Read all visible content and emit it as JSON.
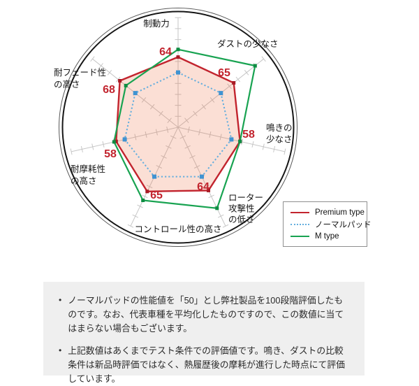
{
  "chart_data": {
    "type": "radar",
    "title": "",
    "categories": [
      "制動力",
      "ダストの少なさ",
      "鳴きの少なさ",
      "ローター攻撃性の低さ",
      "コントロール性の高さ",
      "耐摩耗性の高さ",
      "耐フェード性の高さ"
    ],
    "label_lines": [
      [
        "制動力"
      ],
      [
        "ダストの少なさ"
      ],
      [
        "鳴きの",
        "少なさ"
      ],
      [
        "ローター",
        "攻撃性",
        "の低さ"
      ],
      [
        "コントロール性の高さ"
      ],
      [
        "耐摩耗性",
        "の高さ"
      ],
      [
        "耐フェード性",
        "の高さ"
      ]
    ],
    "scale": {
      "min": 0,
      "max": 100,
      "tick_step": 10
    },
    "series": [
      {
        "name": "Premium type",
        "values": [
          64,
          65,
          58,
          64,
          65,
          58,
          68
        ],
        "color": "#c2242e",
        "marker_color": "#a81a24",
        "style": "solid",
        "fill": "rgba(235,108,66,0.22)",
        "value_labels_shown": true
      },
      {
        "name": "ノーマルパッド",
        "values": [
          50,
          50,
          50,
          50,
          50,
          50,
          50
        ],
        "color": "#64aede",
        "marker_color": "#3f93d2",
        "style": "dotted",
        "fill": null,
        "value_labels_shown": false
      },
      {
        "name": "M type",
        "values": [
          71,
          90,
          58,
          82,
          74,
          60,
          61
        ],
        "color": "#18a351",
        "marker_color": "#0d8c42",
        "style": "solid",
        "fill": null,
        "value_labels_shown": false
      }
    ],
    "value_label_color": "#c2242e",
    "axis_label_color": "#161616",
    "grid": {
      "spoke_color": "#c6c6c6",
      "ring_inner_color": "#161616",
      "ring_outer_color": "#585858"
    },
    "legend_position": "bottom-right"
  },
  "legend": {
    "items": [
      {
        "label": "Premium type",
        "color": "#c2242e",
        "style": "solid"
      },
      {
        "label": "ノーマルパッド",
        "color": "#64aede",
        "style": "dotted"
      },
      {
        "label": "M type",
        "color": "#18a351",
        "style": "solid"
      }
    ]
  },
  "notes": {
    "bullet": "•",
    "bullets": [
      "ノーマルパッドの性能値を「50」とし弊社製品を100段階評価したものです。なお、代表車種を平均化したものですので、この数値に当てはまらない場合もございます。",
      "上記数値はあくまでテスト条件での評価値です。鳴き、ダストの比較条件は新品時評価ではなく、熱履歴後の摩耗が進行した時点にて評価しています。"
    ]
  }
}
